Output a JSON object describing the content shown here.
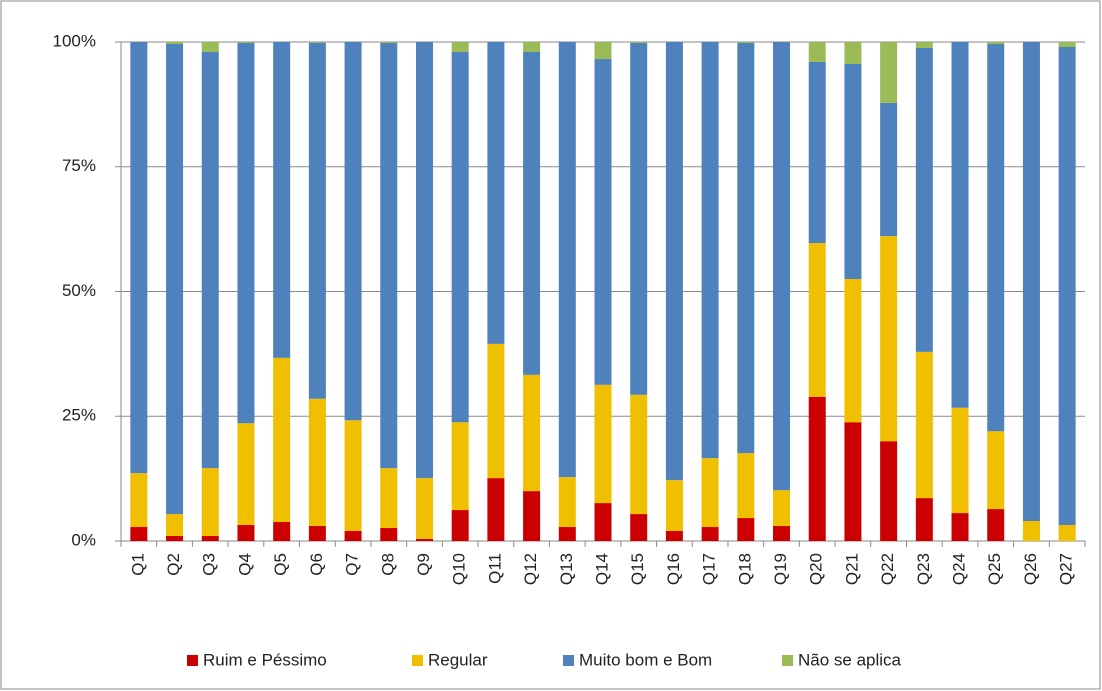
{
  "chart_data": {
    "type": "stacked_bar",
    "categories": [
      "Q1",
      "Q2",
      "Q3",
      "Q4",
      "Q5",
      "Q6",
      "Q7",
      "Q8",
      "Q9",
      "Q10",
      "Q11",
      "Q12",
      "Q13",
      "Q14",
      "Q15",
      "Q16",
      "Q17",
      "Q18",
      "Q19",
      "Q20",
      "Q21",
      "Q22",
      "Q23",
      "Q24",
      "Q25",
      "Q26",
      "Q27"
    ],
    "series": [
      {
        "name": "Ruim e Péssimo",
        "color": "#cc0000",
        "values": [
          2.8,
          1,
          1,
          3.2,
          3.8,
          3,
          2,
          2.6,
          0.4,
          6.2,
          12.6,
          10,
          2.8,
          7.6,
          5.4,
          2,
          2.8,
          4.6,
          3,
          28.9,
          23.8,
          20,
          8.6,
          5.6,
          6.4,
          0,
          0
        ]
      },
      {
        "name": "Regular",
        "color": "#f0bf00",
        "values": [
          10.8,
          4.4,
          13.6,
          20.4,
          32.9,
          25.5,
          22.2,
          12,
          12.2,
          17.6,
          26.9,
          23.3,
          10,
          23.7,
          23.9,
          10.2,
          13.8,
          13,
          7.2,
          30.8,
          28.7,
          41.1,
          29.3,
          21.1,
          15.6,
          4,
          3.2
        ]
      },
      {
        "name": "Muito bom e Bom",
        "color": "#4f81bd",
        "values": [
          86.4,
          94.2,
          83.4,
          76.2,
          63.3,
          71.3,
          75.8,
          85.2,
          87.4,
          74.2,
          60.5,
          64.7,
          87.2,
          65.3,
          70.5,
          87.8,
          83.4,
          82.2,
          89.8,
          36.3,
          43.1,
          26.7,
          60.9,
          73.3,
          77.6,
          96,
          95.8
        ]
      },
      {
        "name": "Não se aplica",
        "color": "#9bbb59",
        "values": [
          0,
          0.4,
          2,
          0.2,
          0,
          0.2,
          0,
          0.2,
          0,
          2,
          0,
          2,
          0,
          3.4,
          0.2,
          0,
          0,
          0.2,
          0,
          4,
          4.4,
          12.2,
          1.2,
          0,
          0.4,
          0,
          1
        ]
      }
    ],
    "ylim": [
      0,
      100
    ],
    "yticks": [
      {
        "value": 0,
        "label": "0%"
      },
      {
        "value": 25,
        "label": "25%"
      },
      {
        "value": 50,
        "label": "50%"
      },
      {
        "value": 75,
        "label": "75%"
      },
      {
        "value": 100,
        "label": "100%"
      }
    ],
    "grid": true,
    "legend": "bottom"
  }
}
